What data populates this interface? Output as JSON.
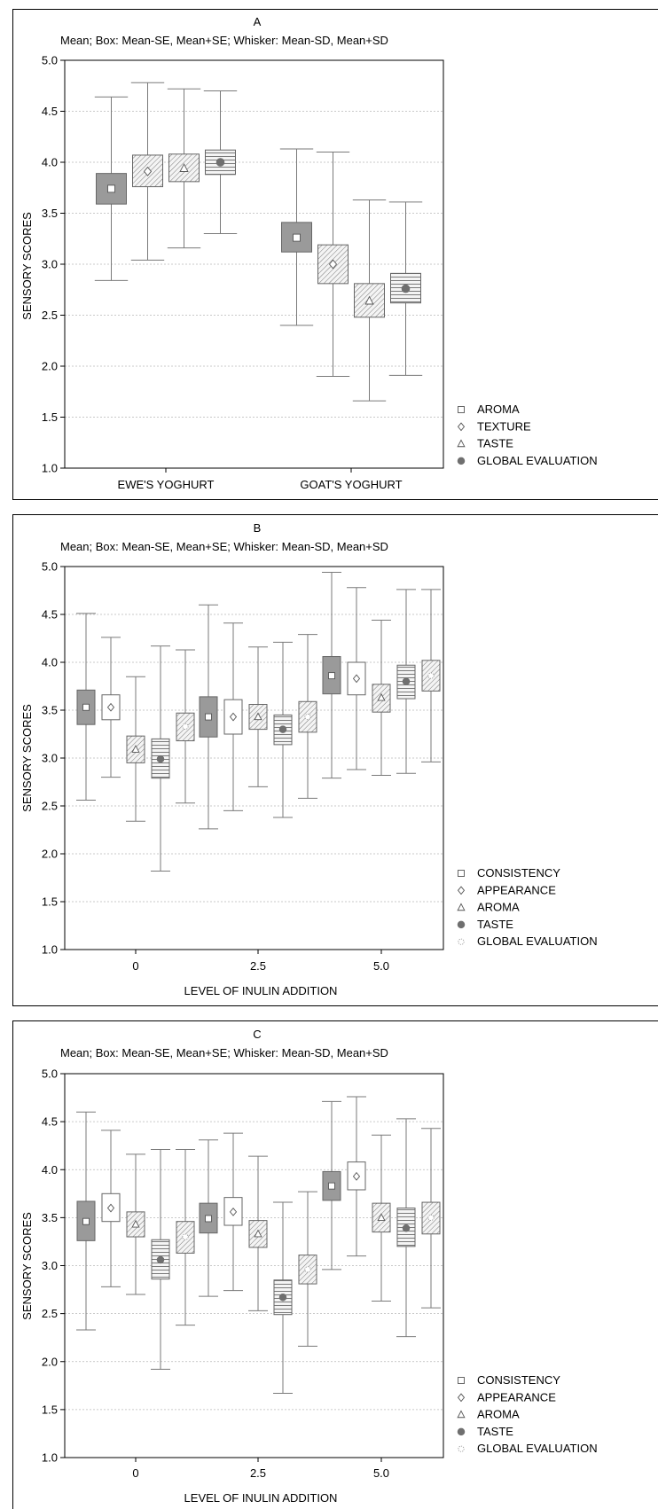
{
  "chart_data": [
    {
      "type": "box",
      "panel_label": "A",
      "subtitle": "Mean;  Box: Mean-SE, Mean+SE;  Whisker: Mean-SD, Mean+SD",
      "ylabel": "SENSORY  SCORES",
      "xlabel": "",
      "ylim": [
        1.0,
        5.0
      ],
      "yticks": [
        "1.0",
        "1.5",
        "2.0",
        "2.5",
        "3.0",
        "3.5",
        "4.0",
        "4.5",
        "5.0"
      ],
      "categories": [
        "EWE'S YOGHURT",
        "GOAT'S YOGHURT"
      ],
      "grid": true,
      "legend_position": "right",
      "series": [
        {
          "name": "AROMA",
          "marker": "square",
          "fill": "solid-gray",
          "mean": [
            3.74,
            3.26
          ],
          "se_low": [
            3.59,
            3.12
          ],
          "se_high": [
            3.89,
            3.41
          ],
          "sd_low": [
            2.84,
            2.4
          ],
          "sd_high": [
            4.64,
            4.13
          ]
        },
        {
          "name": "TEXTURE",
          "marker": "diamond",
          "fill": "diagonal",
          "mean": [
            3.91,
            3.0
          ],
          "se_low": [
            3.76,
            2.81
          ],
          "se_high": [
            4.07,
            3.19
          ],
          "sd_low": [
            3.04,
            1.9
          ],
          "sd_high": [
            4.78,
            4.1
          ]
        },
        {
          "name": "TASTE",
          "marker": "triangle",
          "fill": "diagonal",
          "mean": [
            3.94,
            2.64
          ],
          "se_low": [
            3.81,
            2.48
          ],
          "se_high": [
            4.08,
            2.81
          ],
          "sd_low": [
            3.16,
            1.66
          ],
          "sd_high": [
            4.72,
            3.63
          ]
        },
        {
          "name": "GLOBAL EVALUATION",
          "marker": "circle",
          "fill": "horizontal",
          "mean": [
            4.0,
            2.76
          ],
          "se_low": [
            3.88,
            2.62
          ],
          "se_high": [
            4.12,
            2.91
          ],
          "sd_low": [
            3.3,
            1.91
          ],
          "sd_high": [
            4.7,
            3.61
          ]
        }
      ]
    },
    {
      "type": "box",
      "panel_label": "B",
      "subtitle": "Mean;  Box: Mean-SE, Mean+SE;  Whisker: Mean-SD, Mean+SD",
      "ylabel": "SENSORY  SCORES",
      "xlabel": "LEVEL OF INULIN ADDITION",
      "ylim": [
        1.0,
        5.0
      ],
      "yticks": [
        "1.0",
        "1.5",
        "2.0",
        "2.5",
        "3.0",
        "3.5",
        "4.0",
        "4.5",
        "5.0"
      ],
      "categories": [
        "0",
        "2.5",
        "5.0"
      ],
      "grid": true,
      "legend_position": "right",
      "series": [
        {
          "name": "CONSISTENCY",
          "marker": "square",
          "fill": "solid-gray",
          "mean": [
            3.53,
            3.43,
            3.86
          ],
          "se_low": [
            3.35,
            3.22,
            3.67
          ],
          "se_high": [
            3.71,
            3.64,
            4.06
          ],
          "sd_low": [
            2.56,
            2.26,
            2.79
          ],
          "sd_high": [
            4.51,
            4.6,
            4.94
          ]
        },
        {
          "name": "APPEARANCE",
          "marker": "diamond",
          "fill": "white",
          "mean": [
            3.53,
            3.43,
            3.83
          ],
          "se_low": [
            3.4,
            3.25,
            3.66
          ],
          "se_high": [
            3.66,
            3.61,
            4.0
          ],
          "sd_low": [
            2.8,
            2.45,
            2.88
          ],
          "sd_high": [
            4.26,
            4.41,
            4.78
          ]
        },
        {
          "name": "AROMA",
          "marker": "triangle",
          "fill": "diagonal",
          "mean": [
            3.09,
            3.43,
            3.63
          ],
          "se_low": [
            2.95,
            3.3,
            3.48
          ],
          "se_high": [
            3.23,
            3.56,
            3.77
          ],
          "sd_low": [
            2.34,
            2.7,
            2.82
          ],
          "sd_high": [
            3.85,
            4.16,
            4.44
          ]
        },
        {
          "name": "TASTE",
          "marker": "circle",
          "fill": "horizontal",
          "mean": [
            2.99,
            3.3,
            3.8
          ],
          "se_low": [
            2.79,
            3.14,
            3.62
          ],
          "se_high": [
            3.2,
            3.45,
            3.97
          ],
          "sd_low": [
            1.82,
            2.38,
            2.84
          ],
          "sd_high": [
            4.17,
            4.21,
            4.76
          ]
        },
        {
          "name": "GLOBAL EVALUATION",
          "marker": "star",
          "fill": "diagonal",
          "mean": [
            3.33,
            3.43,
            3.86
          ],
          "se_low": [
            3.18,
            3.27,
            3.7
          ],
          "se_high": [
            3.47,
            3.59,
            4.02
          ],
          "sd_low": [
            2.53,
            2.58,
            2.96
          ],
          "sd_high": [
            4.13,
            4.29,
            4.76
          ]
        }
      ]
    },
    {
      "type": "box",
      "panel_label": "C",
      "subtitle": "Mean;  Box: Mean-SE, Mean+SE;  Whisker: Mean-SD, Mean+SD",
      "ylabel": "SENSORY  SCORES",
      "xlabel": "LEVEL OF INULIN ADDITION",
      "ylim": [
        1.0,
        5.0
      ],
      "yticks": [
        "1.0",
        "1.5",
        "2.0",
        "2.5",
        "3.0",
        "3.5",
        "4.0",
        "4.5",
        "5.0"
      ],
      "categories": [
        "0",
        "2.5",
        "5.0"
      ],
      "grid": true,
      "legend_position": "right",
      "series": [
        {
          "name": "CONSISTENCY",
          "marker": "square",
          "fill": "solid-gray",
          "mean": [
            3.46,
            3.49,
            3.83
          ],
          "se_low": [
            3.26,
            3.34,
            3.68
          ],
          "se_high": [
            3.67,
            3.65,
            3.98
          ],
          "sd_low": [
            2.33,
            2.68,
            2.96
          ],
          "sd_high": [
            4.6,
            4.31,
            4.71
          ]
        },
        {
          "name": "APPEARANCE",
          "marker": "diamond",
          "fill": "white",
          "mean": [
            3.6,
            3.56,
            3.93
          ],
          "se_low": [
            3.46,
            3.42,
            3.79
          ],
          "se_high": [
            3.75,
            3.71,
            4.08
          ],
          "sd_low": [
            2.78,
            2.74,
            3.1
          ],
          "sd_high": [
            4.41,
            4.38,
            4.76
          ]
        },
        {
          "name": "AROMA",
          "marker": "triangle",
          "fill": "diagonal",
          "mean": [
            3.43,
            3.33,
            3.5
          ],
          "se_low": [
            3.3,
            3.19,
            3.35
          ],
          "se_high": [
            3.56,
            3.47,
            3.65
          ],
          "sd_low": [
            2.7,
            2.53,
            2.63
          ],
          "sd_high": [
            4.16,
            4.14,
            4.36
          ]
        },
        {
          "name": "TASTE",
          "marker": "circle",
          "fill": "horizontal",
          "mean": [
            3.06,
            2.67,
            3.39
          ],
          "se_low": [
            2.86,
            2.49,
            3.2
          ],
          "se_high": [
            3.27,
            2.85,
            3.6
          ],
          "sd_low": [
            1.92,
            1.67,
            2.26
          ],
          "sd_high": [
            4.21,
            3.66,
            4.53
          ]
        },
        {
          "name": "GLOBAL EVALUATION",
          "marker": "star",
          "fill": "diagonal",
          "mean": [
            3.3,
            2.96,
            3.5
          ],
          "se_low": [
            3.13,
            2.81,
            3.33
          ],
          "se_high": [
            3.46,
            3.11,
            3.66
          ],
          "sd_low": [
            2.38,
            2.16,
            2.56
          ],
          "sd_high": [
            4.21,
            3.77,
            4.43
          ]
        }
      ]
    }
  ]
}
